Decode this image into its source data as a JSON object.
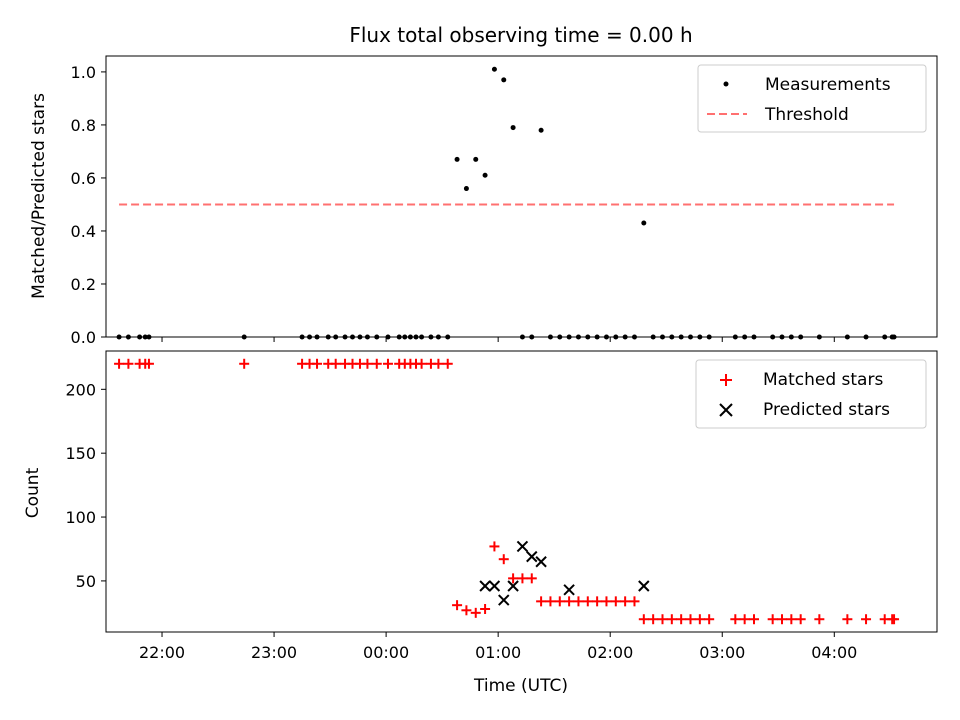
{
  "chart_data": [
    {
      "type": "scatter",
      "title": "Flux total observing time = 0.00 h",
      "xlabel": "",
      "ylabel": "Matched/Predicted stars",
      "xlim": [
        "21:30",
        "04:55"
      ],
      "ylim": [
        0.0,
        1.06
      ],
      "yticks": [
        0.0,
        0.2,
        0.4,
        0.6,
        0.8,
        1.0
      ],
      "ytick_labels": [
        "0.0",
        "0.2",
        "0.4",
        "0.6",
        "0.8",
        "1.0"
      ],
      "grid": false,
      "legend_position": "top-right",
      "series": [
        {
          "name": "Measurements",
          "kind": "scatter",
          "marker": "dot",
          "color": "#000000",
          "x": [
            "21:37",
            "21:42",
            "21:48",
            "21:51",
            "21:53",
            "22:44",
            "23:15",
            "23:19",
            "23:23",
            "23:29",
            "23:33",
            "23:38",
            "23:42",
            "23:46",
            "23:50",
            "23:55",
            "00:01",
            "00:07",
            "00:10",
            "00:13",
            "00:16",
            "00:19",
            "00:24",
            "00:28",
            "00:33",
            "00:38",
            "00:43",
            "00:48",
            "00:53",
            "00:58",
            "01:03",
            "01:08",
            "01:13",
            "01:18",
            "01:23",
            "01:28",
            "01:33",
            "01:38",
            "01:43",
            "01:48",
            "01:53",
            "01:58",
            "02:03",
            "02:08",
            "02:13",
            "02:18",
            "02:23",
            "02:28",
            "02:33",
            "02:38",
            "02:43",
            "02:48",
            "02:53",
            "03:07",
            "03:12",
            "03:17",
            "03:27",
            "03:32",
            "03:37",
            "03:42",
            "03:52",
            "04:07",
            "04:17",
            "04:27",
            "04:31",
            "04:32"
          ],
          "y": [
            0,
            0,
            0,
            0,
            0,
            0,
            0,
            0,
            0,
            0,
            0,
            0,
            0,
            0,
            0,
            0,
            0,
            0,
            0,
            0,
            0,
            0,
            0,
            0,
            0,
            0.67,
            0.56,
            0.67,
            0.61,
            1.01,
            0.97,
            0.79,
            0,
            0,
            0.78,
            0,
            0,
            0,
            0,
            0,
            0,
            0,
            0,
            0,
            0,
            0.43,
            0,
            0,
            0,
            0,
            0,
            0,
            0,
            0,
            0,
            0,
            0,
            0,
            0,
            0,
            0,
            0,
            0,
            0,
            0,
            0
          ]
        },
        {
          "name": "Threshold",
          "kind": "line",
          "style": "dashed",
          "color": "#ff7070",
          "x": [
            "21:37",
            "04:32"
          ],
          "y": [
            0.5,
            0.5
          ]
        }
      ]
    },
    {
      "type": "scatter",
      "title": "",
      "xlabel": "Time (UTC)",
      "ylabel": "Count",
      "xlim": [
        "21:30",
        "04:55"
      ],
      "xticks": [
        "22:00",
        "23:00",
        "00:00",
        "01:00",
        "02:00",
        "03:00",
        "04:00"
      ],
      "ylim": [
        10,
        230
      ],
      "yticks": [
        50,
        100,
        150,
        200
      ],
      "ytick_labels": [
        "50",
        "100",
        "150",
        "200"
      ],
      "grid": false,
      "legend_position": "top-right",
      "series": [
        {
          "name": "Matched stars",
          "kind": "scatter",
          "marker": "plus",
          "color": "#ff0000",
          "x": [
            "21:37",
            "21:42",
            "21:48",
            "21:51",
            "21:53",
            "22:44",
            "23:15",
            "23:19",
            "23:23",
            "23:29",
            "23:33",
            "23:38",
            "23:42",
            "23:46",
            "23:50",
            "23:55",
            "00:01",
            "00:07",
            "00:10",
            "00:13",
            "00:16",
            "00:19",
            "00:24",
            "00:28",
            "00:33",
            "00:38",
            "00:43",
            "00:48",
            "00:53",
            "00:58",
            "01:03",
            "01:08",
            "01:13",
            "01:18",
            "01:23",
            "01:28",
            "01:33",
            "01:38",
            "01:43",
            "01:48",
            "01:53",
            "01:58",
            "02:03",
            "02:08",
            "02:13",
            "02:18",
            "02:23",
            "02:28",
            "02:33",
            "02:38",
            "02:43",
            "02:48",
            "02:53",
            "03:07",
            "03:12",
            "03:17",
            "03:27",
            "03:32",
            "03:37",
            "03:42",
            "03:52",
            "04:07",
            "04:17",
            "04:27",
            "04:31",
            "04:32"
          ],
          "y": [
            220,
            220,
            220,
            220,
            220,
            220,
            220,
            220,
            220,
            220,
            220,
            220,
            220,
            220,
            220,
            220,
            220,
            220,
            220,
            220,
            220,
            220,
            220,
            220,
            220,
            31,
            27,
            25,
            28,
            77,
            67,
            52,
            52,
            52,
            34,
            34,
            34,
            34,
            34,
            34,
            34,
            34,
            34,
            34,
            34,
            20,
            20,
            20,
            20,
            20,
            20,
            20,
            20,
            20,
            20,
            20,
            20,
            20,
            20,
            20,
            20,
            20,
            20,
            20,
            20,
            20
          ]
        },
        {
          "name": "Predicted stars",
          "kind": "scatter",
          "marker": "x",
          "color": "#000000",
          "x": [
            "00:53",
            "00:58",
            "01:03",
            "01:08",
            "01:13",
            "01:18",
            "01:23",
            "01:38",
            "02:18"
          ],
          "y": [
            46,
            46,
            35,
            46,
            77,
            69,
            65,
            43,
            46
          ]
        }
      ]
    }
  ]
}
